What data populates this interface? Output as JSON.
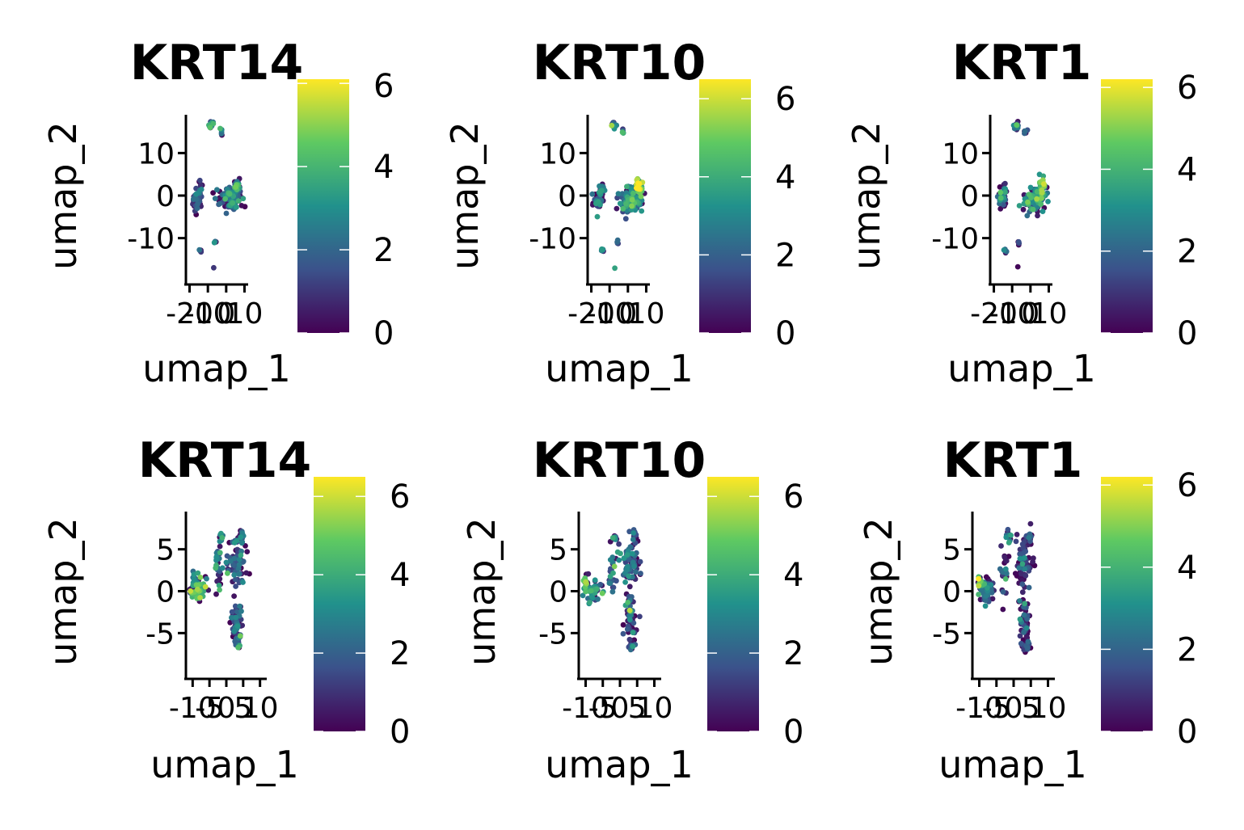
{
  "figure": {
    "layout": "2 rows x 3 columns of UMAP feature plots"
  },
  "colorscale": {
    "name": "viridis",
    "stops": [
      "#440154",
      "#3b528b",
      "#21918c",
      "#5ec962",
      "#fde725"
    ]
  },
  "chart_data": [
    {
      "type": "scatter",
      "title": "KRT14",
      "xlabel": "umap_1",
      "ylabel": "umap_2",
      "xlim": [
        -22,
        12
      ],
      "ylim": [
        -19,
        19
      ],
      "xticks": [
        -20,
        -10,
        0,
        10
      ],
      "xtick_labels": [
        "-20",
        "-10",
        "0",
        "10"
      ],
      "yticks": [
        10,
        0,
        -10
      ],
      "ytick_labels": [
        "10",
        "0",
        "-10"
      ],
      "colorbar": {
        "min": 0,
        "max": 6.1,
        "ticks": [
          0,
          2,
          4,
          6
        ],
        "tick_labels": [
          "0",
          "2",
          "4",
          "6"
        ]
      },
      "clusters": [
        {
          "x": -16,
          "y": -1,
          "sx": 2.2,
          "sy": 2.4,
          "n": 40,
          "expr": 1.2
        },
        {
          "x": -14,
          "y": 1.5,
          "sx": 1.0,
          "sy": 1.5,
          "n": 12,
          "expr": 1.0
        },
        {
          "x": -8,
          "y": 16.5,
          "sx": 1.2,
          "sy": 0.8,
          "n": 14,
          "expr": 2.0
        },
        {
          "x": -3,
          "y": 15,
          "sx": 0.7,
          "sy": 0.6,
          "n": 5,
          "expr": 2.0
        },
        {
          "x": -14,
          "y": -13,
          "sx": 1.0,
          "sy": 0.5,
          "n": 6,
          "expr": 1.5
        },
        {
          "x": -6,
          "y": -11,
          "sx": 0.7,
          "sy": 0.5,
          "n": 4,
          "expr": 1.5
        },
        {
          "x": -7,
          "y": -17,
          "sx": 0.3,
          "sy": 0.3,
          "n": 1,
          "expr": 2.0
        },
        {
          "x": 2,
          "y": -1,
          "sx": 5.0,
          "sy": 2.4,
          "n": 110,
          "expr": 2.2
        },
        {
          "x": 6,
          "y": 2,
          "sx": 1.6,
          "sy": 2.0,
          "n": 35,
          "expr": 3.0
        }
      ]
    },
    {
      "type": "scatter",
      "title": "KRT10",
      "xlabel": "umap_1",
      "ylabel": "umap_2",
      "xlim": [
        -22,
        12
      ],
      "ylim": [
        -19,
        19
      ],
      "xticks": [
        -20,
        -10,
        0,
        10
      ],
      "xtick_labels": [
        "-20",
        "-10",
        "0",
        "10"
      ],
      "yticks": [
        10,
        0,
        -10
      ],
      "ytick_labels": [
        "10",
        "0",
        "-10"
      ],
      "colorbar": {
        "min": 0,
        "max": 6.5,
        "ticks": [
          0,
          2,
          4,
          6
        ],
        "tick_labels": [
          "0",
          "2",
          "4",
          "6"
        ]
      },
      "clusters": [
        {
          "x": -16,
          "y": -1,
          "sx": 2.2,
          "sy": 2.4,
          "n": 40,
          "expr": 2.0
        },
        {
          "x": -14,
          "y": 1.5,
          "sx": 1.0,
          "sy": 1.5,
          "n": 12,
          "expr": 2.2
        },
        {
          "x": -8,
          "y": 16.5,
          "sx": 1.2,
          "sy": 0.8,
          "n": 14,
          "expr": 2.5
        },
        {
          "x": -3,
          "y": 15,
          "sx": 0.7,
          "sy": 0.6,
          "n": 5,
          "expr": 1.5
        },
        {
          "x": -14,
          "y": -13,
          "sx": 1.0,
          "sy": 0.5,
          "n": 6,
          "expr": 2.5
        },
        {
          "x": -6,
          "y": -11,
          "sx": 0.7,
          "sy": 0.5,
          "n": 4,
          "expr": 2.0
        },
        {
          "x": -7,
          "y": -17,
          "sx": 0.3,
          "sy": 0.3,
          "n": 1,
          "expr": 2.5
        },
        {
          "x": 2,
          "y": -1,
          "sx": 5.0,
          "sy": 2.4,
          "n": 110,
          "expr": 2.8
        },
        {
          "x": 6,
          "y": 2,
          "sx": 1.6,
          "sy": 2.0,
          "n": 35,
          "expr": 5.0
        }
      ]
    },
    {
      "type": "scatter",
      "title": "KRT1",
      "xlabel": "umap_1",
      "ylabel": "umap_2",
      "xlim": [
        -22,
        12
      ],
      "ylim": [
        -19,
        19
      ],
      "xticks": [
        -20,
        -10,
        0,
        10
      ],
      "xtick_labels": [
        "-20",
        "-10",
        "0",
        "10"
      ],
      "yticks": [
        10,
        0,
        -10
      ],
      "ytick_labels": [
        "10",
        "0",
        "-10"
      ],
      "colorbar": {
        "min": 0,
        "max": 6.2,
        "ticks": [
          0,
          2,
          4,
          6
        ],
        "tick_labels": [
          "0",
          "2",
          "4",
          "6"
        ]
      },
      "clusters": [
        {
          "x": -16,
          "y": -1,
          "sx": 2.2,
          "sy": 2.4,
          "n": 40,
          "expr": 2.0
        },
        {
          "x": -14,
          "y": 1.5,
          "sx": 1.0,
          "sy": 1.5,
          "n": 12,
          "expr": 2.0
        },
        {
          "x": -8,
          "y": 16.5,
          "sx": 1.2,
          "sy": 0.8,
          "n": 14,
          "expr": 2.2
        },
        {
          "x": -3,
          "y": 15,
          "sx": 0.7,
          "sy": 0.6,
          "n": 5,
          "expr": 1.0
        },
        {
          "x": -14,
          "y": -13,
          "sx": 1.0,
          "sy": 0.5,
          "n": 6,
          "expr": 2.0
        },
        {
          "x": -6,
          "y": -11,
          "sx": 0.7,
          "sy": 0.5,
          "n": 4,
          "expr": 1.0
        },
        {
          "x": -7,
          "y": -17,
          "sx": 0.3,
          "sy": 0.3,
          "n": 1,
          "expr": 2.0
        },
        {
          "x": 2,
          "y": -1,
          "sx": 5.0,
          "sy": 2.4,
          "n": 110,
          "expr": 2.5
        },
        {
          "x": 6,
          "y": 2,
          "sx": 1.6,
          "sy": 2.0,
          "n": 35,
          "expr": 4.0
        }
      ]
    },
    {
      "type": "scatter",
      "title": "KRT14",
      "xlabel": "umap_1",
      "ylabel": "umap_2",
      "xlim": [
        -12,
        12
      ],
      "ylim": [
        -9.5,
        9.5
      ],
      "xticks": [
        -10,
        -5,
        0,
        5,
        10
      ],
      "xtick_labels": [
        "-10",
        "-5",
        "0",
        "5",
        "10"
      ],
      "yticks": [
        5,
        0,
        -5
      ],
      "ytick_labels": [
        "5",
        "0",
        "-5"
      ],
      "colorbar": {
        "min": 0,
        "max": 6.5,
        "ticks": [
          0,
          2,
          4,
          6
        ],
        "tick_labels": [
          "0",
          "2",
          "4",
          "6"
        ]
      },
      "clusters": [
        {
          "x": -8,
          "y": 0.2,
          "sx": 2.0,
          "sy": 1.2,
          "n": 60,
          "expr": 4.2
        },
        {
          "x": -9.5,
          "y": 1.5,
          "sx": 0.7,
          "sy": 0.7,
          "n": 12,
          "expr": 2.5
        },
        {
          "x": -2.5,
          "y": 2.5,
          "sx": 1.0,
          "sy": 2.5,
          "n": 25,
          "expr": 2.0
        },
        {
          "x": -1.5,
          "y": 6.5,
          "sx": 0.6,
          "sy": 0.7,
          "n": 10,
          "expr": 2.2
        },
        {
          "x": 3,
          "y": 3.5,
          "sx": 2.5,
          "sy": 2.5,
          "n": 70,
          "expr": 1.8
        },
        {
          "x": 4.5,
          "y": 6.5,
          "sx": 0.8,
          "sy": 0.8,
          "n": 12,
          "expr": 1.5
        },
        {
          "x": 3,
          "y": -3.5,
          "sx": 1.4,
          "sy": 2.5,
          "n": 55,
          "expr": 1.6
        },
        {
          "x": 3.5,
          "y": -6.5,
          "sx": 1.0,
          "sy": 0.8,
          "n": 15,
          "expr": 2.5
        }
      ]
    },
    {
      "type": "scatter",
      "title": "KRT10",
      "xlabel": "umap_1",
      "ylabel": "umap_2",
      "xlim": [
        -12,
        12
      ],
      "ylim": [
        -9.5,
        9.5
      ],
      "xticks": [
        -10,
        -5,
        0,
        5,
        10
      ],
      "xtick_labels": [
        "-10",
        "-5",
        "0",
        "5",
        "10"
      ],
      "yticks": [
        5,
        0,
        -5
      ],
      "ytick_labels": [
        "5",
        "0",
        "-5"
      ],
      "colorbar": {
        "min": 0,
        "max": 6.5,
        "ticks": [
          0,
          2,
          4,
          6
        ],
        "tick_labels": [
          "0",
          "2",
          "4",
          "6"
        ]
      },
      "clusters": [
        {
          "x": -8,
          "y": 0.2,
          "sx": 2.0,
          "sy": 1.2,
          "n": 60,
          "expr": 3.0
        },
        {
          "x": -10,
          "y": 1.0,
          "sx": 0.6,
          "sy": 0.7,
          "n": 14,
          "expr": 5.0
        },
        {
          "x": -2.5,
          "y": 2.5,
          "sx": 1.0,
          "sy": 2.5,
          "n": 25,
          "expr": 2.2
        },
        {
          "x": -1.5,
          "y": 6.5,
          "sx": 0.6,
          "sy": 0.7,
          "n": 10,
          "expr": 2.5
        },
        {
          "x": 3,
          "y": 3.5,
          "sx": 2.5,
          "sy": 2.5,
          "n": 70,
          "expr": 1.8
        },
        {
          "x": 4.5,
          "y": 6.5,
          "sx": 0.8,
          "sy": 0.8,
          "n": 12,
          "expr": 1.5
        },
        {
          "x": 3,
          "y": -3.5,
          "sx": 1.4,
          "sy": 2.5,
          "n": 55,
          "expr": 1.6
        },
        {
          "x": 3.5,
          "y": -6.5,
          "sx": 1.0,
          "sy": 0.8,
          "n": 15,
          "expr": 2.0
        }
      ]
    },
    {
      "type": "scatter",
      "title": "KRT1",
      "xlabel": "umap_1",
      "ylabel": "umap_2",
      "xlim": [
        -12,
        12
      ],
      "ylim": [
        -9.5,
        9.5
      ],
      "xticks": [
        -10,
        -5,
        0,
        5,
        10
      ],
      "xtick_labels": [
        "-10",
        "-5",
        "0",
        "5",
        "10"
      ],
      "yticks": [
        5,
        0,
        -5
      ],
      "ytick_labels": [
        "5",
        "0",
        "-5"
      ],
      "colorbar": {
        "min": 0,
        "max": 6.2,
        "ticks": [
          0,
          2,
          4,
          6
        ],
        "tick_labels": [
          "0",
          "2",
          "4",
          "6"
        ]
      },
      "clusters": [
        {
          "x": -8,
          "y": 0.2,
          "sx": 2.0,
          "sy": 1.2,
          "n": 60,
          "expr": 2.2
        },
        {
          "x": -10,
          "y": 1.0,
          "sx": 0.6,
          "sy": 0.7,
          "n": 14,
          "expr": 4.5
        },
        {
          "x": -2.5,
          "y": 2.5,
          "sx": 1.0,
          "sy": 2.5,
          "n": 25,
          "expr": 1.6
        },
        {
          "x": -1.5,
          "y": 6.5,
          "sx": 0.6,
          "sy": 0.7,
          "n": 10,
          "expr": 1.5
        },
        {
          "x": 3,
          "y": 3.5,
          "sx": 2.5,
          "sy": 2.5,
          "n": 70,
          "expr": 1.2
        },
        {
          "x": 4.5,
          "y": 6.5,
          "sx": 0.8,
          "sy": 0.8,
          "n": 12,
          "expr": 1.2
        },
        {
          "x": 3,
          "y": -3.5,
          "sx": 1.4,
          "sy": 2.5,
          "n": 55,
          "expr": 1.0
        },
        {
          "x": 3.5,
          "y": -6.5,
          "sx": 1.0,
          "sy": 0.8,
          "n": 15,
          "expr": 1.4
        }
      ]
    }
  ]
}
